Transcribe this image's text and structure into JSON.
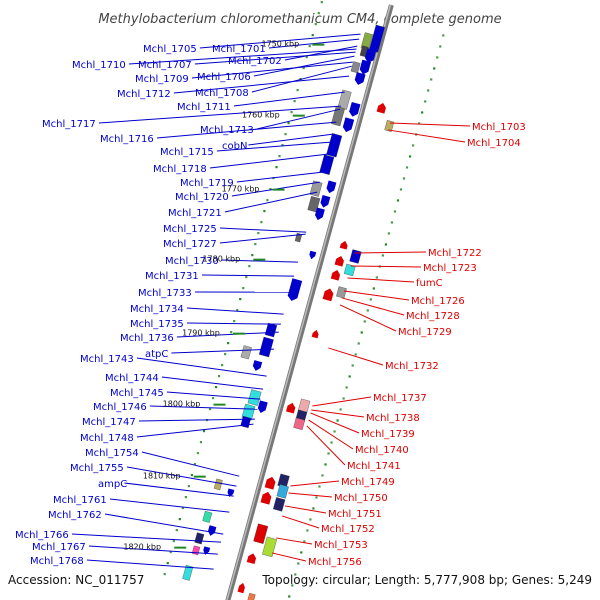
{
  "title": "Methylobacterium chloromethanicum CM4, complete genome",
  "footer": {
    "accession": "Accession: NC_011757",
    "info": "Topology: circular; Length: 5,777,908 bp; Genes: 5,249"
  },
  "colors": {
    "forward": "#0000cc",
    "reverse": "#dd0000",
    "backbone": "#888888",
    "tick": "#228822"
  },
  "ticks": [
    "1750 kbp",
    "1760 kbp",
    "1770 kbp",
    "1780 kbp",
    "1790 kbp",
    "1800 kbp",
    "1810 kbp",
    "1820 kbp"
  ],
  "left_labels": [
    "Mchl_1705",
    "Mchl_1701",
    "Mchl_1702",
    "Mchl_1710",
    "Mchl_1707",
    "Mchl_1706",
    "Mchl_1709",
    "Mchl_1708",
    "Mchl_1712",
    "Mchl_1711",
    "Mchl_1717",
    "Mchl_1713",
    "Mchl_1716",
    "cobN",
    "Mchl_1715",
    "Mchl_1718",
    "Mchl_1719",
    "Mchl_1720",
    "Mchl_1721",
    "Mchl_1725",
    "Mchl_1727",
    "Mchl_1730",
    "Mchl_1731",
    "Mchl_1733",
    "Mchl_1734",
    "Mchl_1735",
    "Mchl_1736",
    "atpC",
    "Mchl_1743",
    "Mchl_1744",
    "Mchl_1745",
    "Mchl_1746",
    "Mchl_1747",
    "Mchl_1748",
    "Mchl_1754",
    "Mchl_1755",
    "ampC",
    "Mchl_1761",
    "Mchl_1762",
    "Mchl_1766",
    "Mchl_1767",
    "Mchl_1768"
  ],
  "right_labels": [
    "Mchl_1703",
    "Mchl_1704",
    "Mchl_1722",
    "Mchl_1723",
    "fumC",
    "Mchl_1726",
    "Mchl_1728",
    "Mchl_1729",
    "Mchl_1732",
    "Mchl_1737",
    "Mchl_1738",
    "Mchl_1739",
    "Mchl_1740",
    "Mchl_1741",
    "Mchl_1749",
    "Mchl_1750",
    "Mchl_1751",
    "Mchl_1752",
    "Mchl_1753",
    "Mchl_1756"
  ]
}
